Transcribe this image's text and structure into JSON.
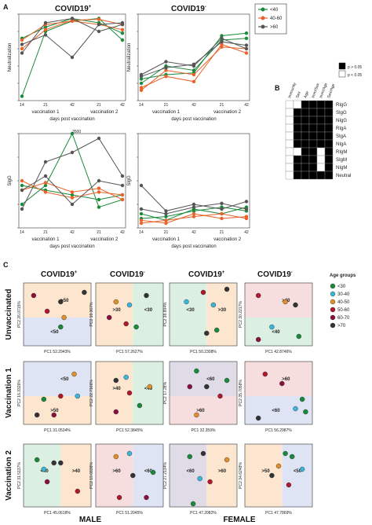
{
  "panel_labels": {
    "a": "A",
    "b": "B",
    "c": "C"
  },
  "panelA": {
    "pos_title": "COVID19",
    "neg_title": "COVID19",
    "pos_sup": "+",
    "neg_sup": "-",
    "y_neut": "Neutralization",
    "y_slgg": "SlgG",
    "xticks": [
      "14",
      "21",
      "42",
      "21",
      "42"
    ],
    "vacc1": "vaccination 1",
    "vacc2": "vaccination 2",
    "xlabel": "days post vaccination",
    "peak_label": "3500",
    "legend": [
      {
        "label": "<40",
        "color": "#1a8a3a"
      },
      {
        "label": "40-60",
        "color": "#e8622a"
      },
      {
        "label": ">60",
        "color": "#555555"
      }
    ],
    "neut_yticks": [
      "0",
      "20",
      "40",
      "60",
      "80",
      "100"
    ],
    "slgg_yticks": [
      "0",
      "500",
      "1000",
      "1500",
      "2000"
    ]
  },
  "panelB": {
    "cols": [
      "Immunity",
      "Sex",
      "Age",
      "Imm/Sex",
      "Imm/Age",
      "Sex/Age"
    ],
    "rows": [
      "RIgG",
      "SIgG",
      "NIgG",
      "RIgA",
      "SIgA",
      "NIgA",
      "RIgM",
      "SIgM",
      "NIgM",
      "Neutral"
    ],
    "legend": [
      {
        "label": "p > 0.05",
        "color": "#000000"
      },
      {
        "label": "p < 0.05",
        "color": "#ffffff"
      }
    ],
    "grid": [
      [
        0,
        0,
        1,
        1,
        1,
        1
      ],
      [
        0,
        1,
        1,
        1,
        1,
        1
      ],
      [
        0,
        1,
        1,
        1,
        1,
        1
      ],
      [
        0,
        1,
        1,
        1,
        1,
        1
      ],
      [
        0,
        1,
        1,
        1,
        1,
        1
      ],
      [
        0,
        1,
        1,
        1,
        1,
        1
      ],
      [
        0,
        0,
        1,
        1,
        0,
        1
      ],
      [
        0,
        1,
        1,
        1,
        0,
        1
      ],
      [
        0,
        1,
        1,
        1,
        0,
        1
      ],
      [
        0,
        1,
        1,
        1,
        1,
        1
      ]
    ]
  },
  "panelC": {
    "col_titles": [
      "COVID19",
      "COVID19",
      "COVID19",
      "COVID19"
    ],
    "col_sups": [
      "+",
      "-",
      "+",
      "-"
    ],
    "row_titles": [
      "Unvaccinated",
      "Vaccination 1",
      "Vaccination 2"
    ],
    "sex_labels": [
      "MALE",
      "FEMALE"
    ],
    "age_title": "Age groups",
    "age_groups": [
      {
        "label": "<30",
        "color": "#1a8a3a"
      },
      {
        "label": "30-40",
        "color": "#3ab6d8"
      },
      {
        "label": "40-50",
        "color": "#e0902a"
      },
      {
        "label": "50-60",
        "color": "#b01830"
      },
      {
        "label": "60-70",
        "color": "#8a1040"
      },
      {
        "label": ">70",
        "color": "#333333"
      }
    ],
    "plots": [
      {
        "xl": "PC1 52.2943%",
        "yl": "PC2 26.0715%",
        "regions": [
          ">50",
          "<50"
        ]
      },
      {
        "xl": "PC1 57.2627%",
        "yl": "PC2 19.367%",
        "regions": [
          ">30",
          "<30"
        ]
      },
      {
        "xl": "PC1 50.2308%",
        "yl": "PC2 38.894%",
        "regions": [
          "<30",
          ">30"
        ]
      },
      {
        "xl": "PC1 42.8746%",
        "yl": "PC2 30.2217%",
        "regions": [
          ">40",
          "<40"
        ]
      },
      {
        "xl": "PC1 31.0534%",
        "yl": "PC2 16.3326%",
        "regions": [
          "<50",
          ">50"
        ]
      },
      {
        "xl": "PC1 52.3845%",
        "yl": "PC2 22.7166%",
        "regions": [
          ">40",
          "<40"
        ]
      },
      {
        "xl": "PC1 32.359%",
        "yl": "PC2 17.28%",
        "regions": [
          "<60",
          ">60"
        ]
      },
      {
        "xl": "PC1 56.2987%",
        "yl": "PC2 35.7058%",
        "regions": [
          ">60",
          "<60"
        ]
      },
      {
        "xl": "PC1 45.0618%",
        "yl": "PC2 31.5137%",
        "regions": [
          "<40",
          ">40"
        ]
      },
      {
        "xl": "PC1 51.2045%",
        "yl": "PC2 19.6838%",
        "regions": [
          ">60",
          "<60"
        ]
      },
      {
        "xl": "PC1 47.2082%",
        "yl": "PC2 27.2134%",
        "regions": [
          "<60",
          ">60"
        ]
      },
      {
        "xl": "PC1 47.7869%",
        "yl": "PC2 34.6248%",
        "regions": [
          ">50",
          "<50"
        ]
      }
    ]
  }
}
